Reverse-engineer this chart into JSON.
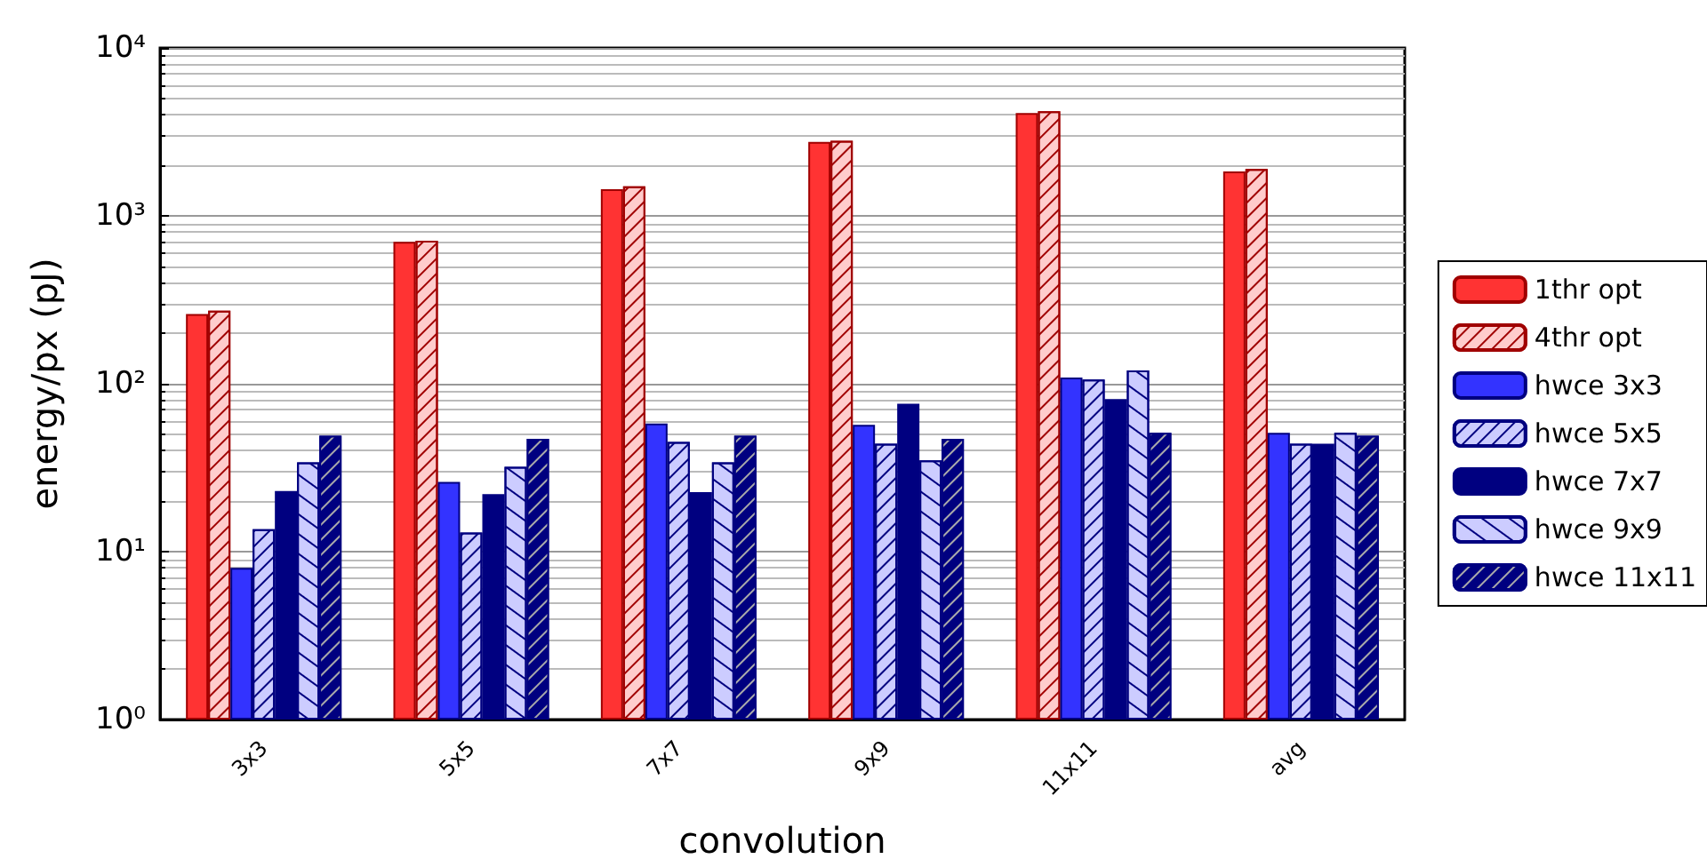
{
  "chart_data": {
    "type": "bar",
    "xlabel": "convolution",
    "ylabel": "energy/px (pJ)",
    "categories": [
      "3x3",
      "5x5",
      "7x7",
      "9x9",
      "11x11",
      "avg"
    ],
    "series": [
      {
        "name": "1thr opt",
        "color": "#ff3333",
        "values": [
          260,
          700,
          1440,
          2760,
          4100,
          1840
        ]
      },
      {
        "name": "4thr opt",
        "color": "#ffcccc",
        "values": [
          272,
          710,
          1500,
          2800,
          4200,
          1900
        ]
      },
      {
        "name": "hwce 3x3",
        "color": "#3333ff",
        "values": [
          8,
          26,
          58,
          57,
          109,
          51
        ]
      },
      {
        "name": "hwce 5x5",
        "color": "#ccccff",
        "values": [
          13.6,
          13,
          45,
          44,
          106,
          44
        ]
      },
      {
        "name": "hwce 7x7",
        "color": "#000080",
        "values": [
          23,
          22,
          22.6,
          76,
          81,
          44
        ]
      },
      {
        "name": "hwce 9x9",
        "color": "#ccccff",
        "values": [
          34,
          32,
          34,
          35,
          120,
          51
        ]
      },
      {
        "name": "hwce 11x11",
        "color": "#000080",
        "values": [
          49,
          47,
          49,
          47,
          51,
          49
        ]
      }
    ],
    "log": "y",
    "ylim": [
      1,
      10000
    ],
    "yticks": [
      {
        "value": 1,
        "label": "10⁰"
      },
      {
        "value": 10,
        "label": "10¹"
      },
      {
        "value": 100,
        "label": "10²"
      },
      {
        "value": 1000,
        "label": "10³"
      },
      {
        "value": 10000,
        "label": "10⁴"
      }
    ],
    "grid": "y",
    "legend": "right"
  }
}
